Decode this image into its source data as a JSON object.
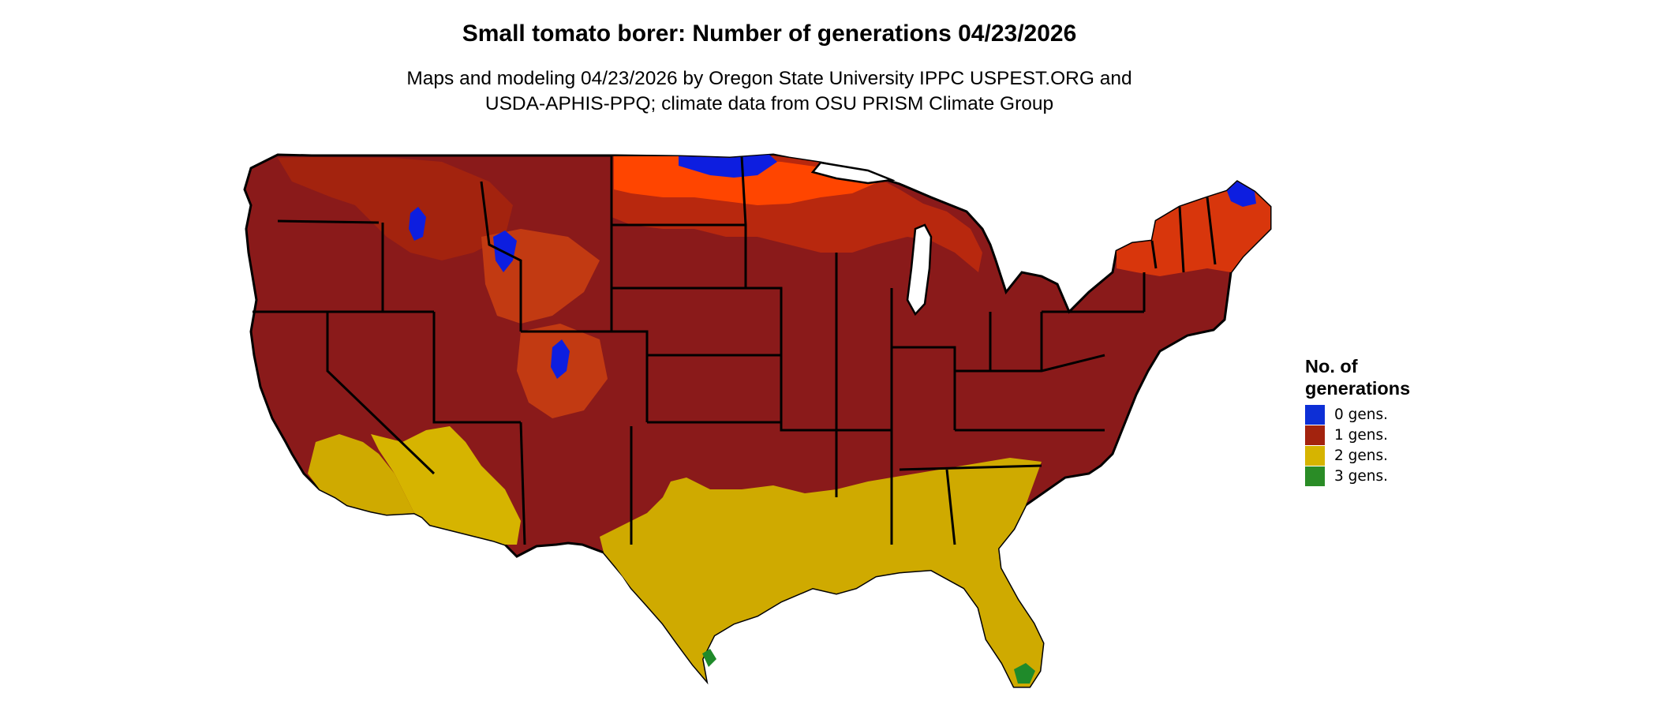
{
  "title": "Small tomato borer: Number of generations 04/23/2026",
  "subtitle_line1": "Maps and modeling 04/23/2026 by Oregon State University IPPC USPEST.ORG and",
  "subtitle_line2": "USDA-APHIS-PPQ; climate data from OSU PRISM Climate Group",
  "legend": {
    "title_line1": "No. of",
    "title_line2": "generations",
    "items": [
      {
        "label": "0 gens.",
        "color": "#0d2fd6"
      },
      {
        "label": "1 gens.",
        "color": "#a3230e"
      },
      {
        "label": "2 gens.",
        "color": "#d6b400"
      },
      {
        "label": "3 gens.",
        "color": "#2a8c26"
      }
    ]
  },
  "map_colors": {
    "base_red": "#8a1a1a",
    "orange_red": "#b8280e",
    "bright_orange": "#ff4500",
    "yellow": "#cfaa00",
    "light_yellow": "#e3d300",
    "blue": "#0d1ee0",
    "green": "#1f8a2a",
    "border": "#000000"
  }
}
